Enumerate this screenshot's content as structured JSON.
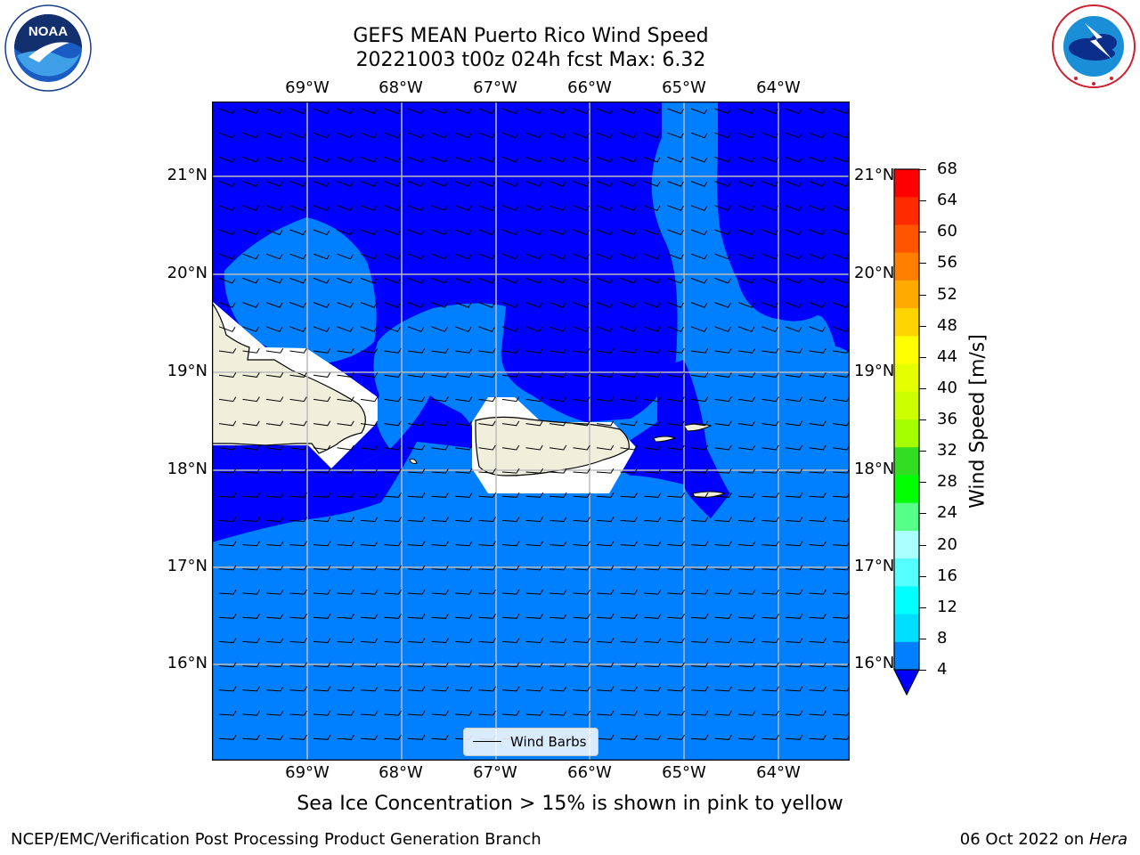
{
  "header": {
    "title_line1": "GEFS MEAN Puerto Rico Wind Speed",
    "title_line2": "20221003 t00z 024h fcst   Max: 6.32"
  },
  "logos": {
    "left": "NOAA",
    "left_ring_text": "NATIONAL OCEANIC AND ATMOSPHERIC ADMINISTRATION · U.S. DEPARTMENT OF COMMERCE",
    "right_ring_text": "NATIONAL WEATHER SERVICE"
  },
  "map": {
    "lon_labels": [
      "69°W",
      "68°W",
      "67°W",
      "66°W",
      "65°W",
      "64°W"
    ],
    "lat_labels": [
      "21°N",
      "20°N",
      "19°N",
      "18°N",
      "17°N",
      "16°N"
    ],
    "legend_label": "Wind Barbs",
    "colors": {
      "dark_blue": "#0000ff",
      "mid_blue": "#0080ff",
      "land": "#efefdc",
      "grid": "#bbbbbb"
    }
  },
  "colorbar": {
    "label": "Wind Speed [m/s]",
    "ticks": [
      "68",
      "64",
      "60",
      "56",
      "52",
      "48",
      "44",
      "40",
      "36",
      "32",
      "28",
      "24",
      "20",
      "16",
      "12",
      "8",
      "4"
    ],
    "colors": [
      "#ff0000",
      "#ff2a00",
      "#ff5500",
      "#ff8000",
      "#ffaa00",
      "#ffd400",
      "#ffff00",
      "#e6ff00",
      "#ccff00",
      "#a6ff00",
      "#33dd22",
      "#00ff00",
      "#55ff88",
      "#aaffff",
      "#55ffff",
      "#00ffff",
      "#00ddff",
      "#0080ff"
    ],
    "extend_color": "#0000ff"
  },
  "caption": "Sea Ice Concentration > 15% is shown in pink to yellow",
  "footer": {
    "left": "NCEP/EMC/Verification Post Processing Product Generation Branch",
    "right_date": "06 Oct 2022 on",
    "right_host": "Hera"
  }
}
